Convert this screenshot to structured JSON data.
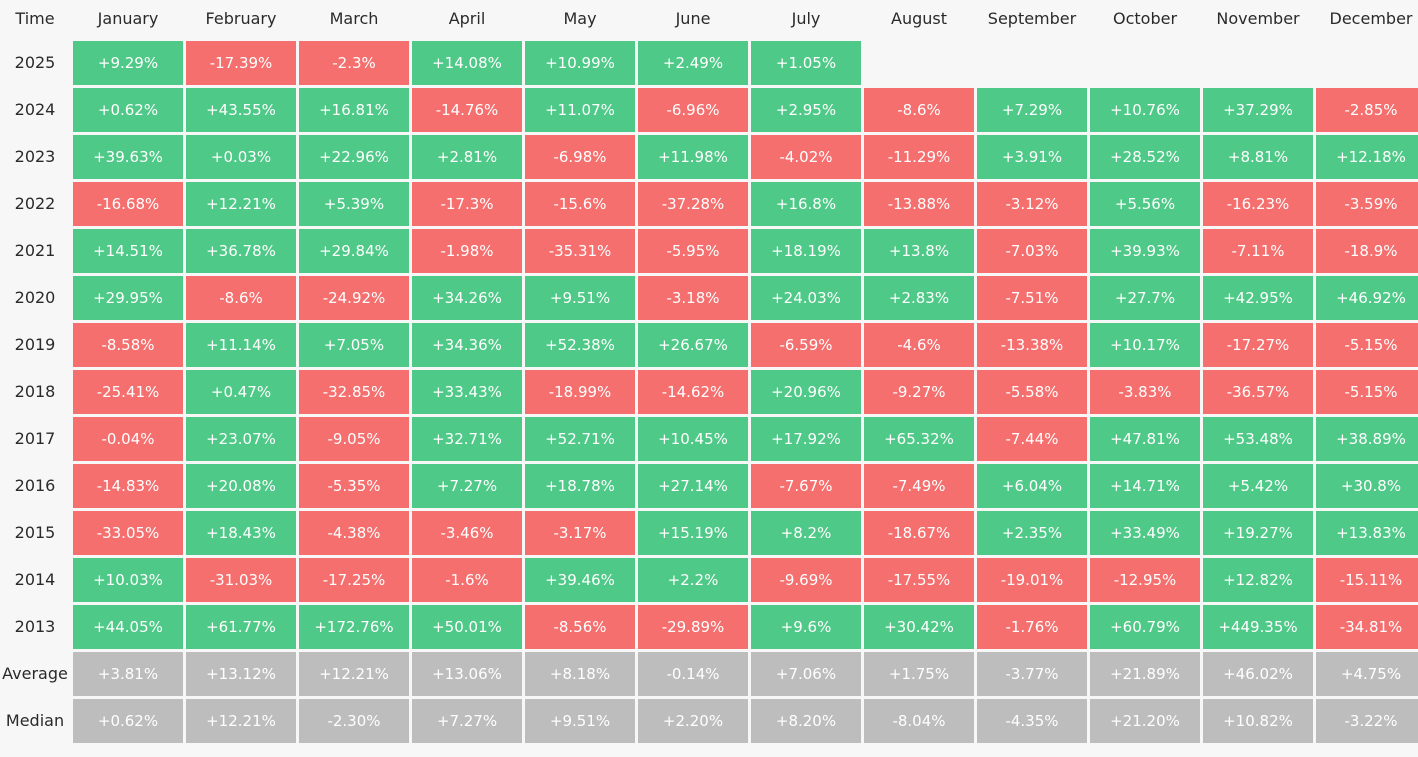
{
  "table": {
    "corner": "Time",
    "months": [
      "January",
      "February",
      "March",
      "April",
      "May",
      "June",
      "July",
      "August",
      "September",
      "October",
      "November",
      "December"
    ],
    "rows": [
      {
        "label": "2025",
        "values": [
          "+9.29%",
          "-17.39%",
          "-2.3%",
          "+14.08%",
          "+10.99%",
          "+2.49%",
          "+1.05%",
          "",
          "",
          "",
          "",
          ""
        ]
      },
      {
        "label": "2024",
        "values": [
          "+0.62%",
          "+43.55%",
          "+16.81%",
          "-14.76%",
          "+11.07%",
          "-6.96%",
          "+2.95%",
          "-8.6%",
          "+7.29%",
          "+10.76%",
          "+37.29%",
          "-2.85%"
        ]
      },
      {
        "label": "2023",
        "values": [
          "+39.63%",
          "+0.03%",
          "+22.96%",
          "+2.81%",
          "-6.98%",
          "+11.98%",
          "-4.02%",
          "-11.29%",
          "+3.91%",
          "+28.52%",
          "+8.81%",
          "+12.18%"
        ]
      },
      {
        "label": "2022",
        "values": [
          "-16.68%",
          "+12.21%",
          "+5.39%",
          "-17.3%",
          "-15.6%",
          "-37.28%",
          "+16.8%",
          "-13.88%",
          "-3.12%",
          "+5.56%",
          "-16.23%",
          "-3.59%"
        ]
      },
      {
        "label": "2021",
        "values": [
          "+14.51%",
          "+36.78%",
          "+29.84%",
          "-1.98%",
          "-35.31%",
          "-5.95%",
          "+18.19%",
          "+13.8%",
          "-7.03%",
          "+39.93%",
          "-7.11%",
          "-18.9%"
        ]
      },
      {
        "label": "2020",
        "values": [
          "+29.95%",
          "-8.6%",
          "-24.92%",
          "+34.26%",
          "+9.51%",
          "-3.18%",
          "+24.03%",
          "+2.83%",
          "-7.51%",
          "+27.7%",
          "+42.95%",
          "+46.92%"
        ]
      },
      {
        "label": "2019",
        "values": [
          "-8.58%",
          "+11.14%",
          "+7.05%",
          "+34.36%",
          "+52.38%",
          "+26.67%",
          "-6.59%",
          "-4.6%",
          "-13.38%",
          "+10.17%",
          "-17.27%",
          "-5.15%"
        ]
      },
      {
        "label": "2018",
        "values": [
          "-25.41%",
          "+0.47%",
          "-32.85%",
          "+33.43%",
          "-18.99%",
          "-14.62%",
          "+20.96%",
          "-9.27%",
          "-5.58%",
          "-3.83%",
          "-36.57%",
          "-5.15%"
        ]
      },
      {
        "label": "2017",
        "values": [
          "-0.04%",
          "+23.07%",
          "-9.05%",
          "+32.71%",
          "+52.71%",
          "+10.45%",
          "+17.92%",
          "+65.32%",
          "-7.44%",
          "+47.81%",
          "+53.48%",
          "+38.89%"
        ]
      },
      {
        "label": "2016",
        "values": [
          "-14.83%",
          "+20.08%",
          "-5.35%",
          "+7.27%",
          "+18.78%",
          "+27.14%",
          "-7.67%",
          "-7.49%",
          "+6.04%",
          "+14.71%",
          "+5.42%",
          "+30.8%"
        ]
      },
      {
        "label": "2015",
        "values": [
          "-33.05%",
          "+18.43%",
          "-4.38%",
          "-3.46%",
          "-3.17%",
          "+15.19%",
          "+8.2%",
          "-18.67%",
          "+2.35%",
          "+33.49%",
          "+19.27%",
          "+13.83%"
        ]
      },
      {
        "label": "2014",
        "values": [
          "+10.03%",
          "-31.03%",
          "-17.25%",
          "-1.6%",
          "+39.46%",
          "+2.2%",
          "-9.69%",
          "-17.55%",
          "-19.01%",
          "-12.95%",
          "+12.82%",
          "-15.11%"
        ]
      },
      {
        "label": "2013",
        "values": [
          "+44.05%",
          "+61.77%",
          "+172.76%",
          "+50.01%",
          "-8.56%",
          "-29.89%",
          "+9.6%",
          "+30.42%",
          "-1.76%",
          "+60.79%",
          "+449.35%",
          "-34.81%"
        ]
      }
    ],
    "stats": [
      {
        "label": "Average",
        "values": [
          "+3.81%",
          "+13.12%",
          "+12.21%",
          "+13.06%",
          "+8.18%",
          "-0.14%",
          "+7.06%",
          "+1.75%",
          "-3.77%",
          "+21.89%",
          "+46.02%",
          "+4.75%"
        ]
      },
      {
        "label": "Median",
        "values": [
          "+0.62%",
          "+12.21%",
          "-2.30%",
          "+7.27%",
          "+9.51%",
          "+2.20%",
          "+8.20%",
          "-8.04%",
          "-4.35%",
          "+21.20%",
          "+10.82%",
          "-3.22%"
        ]
      }
    ]
  },
  "colors": {
    "positive": "#4fc987",
    "negative": "#f56f6f",
    "stat": "#bdbdbd"
  }
}
